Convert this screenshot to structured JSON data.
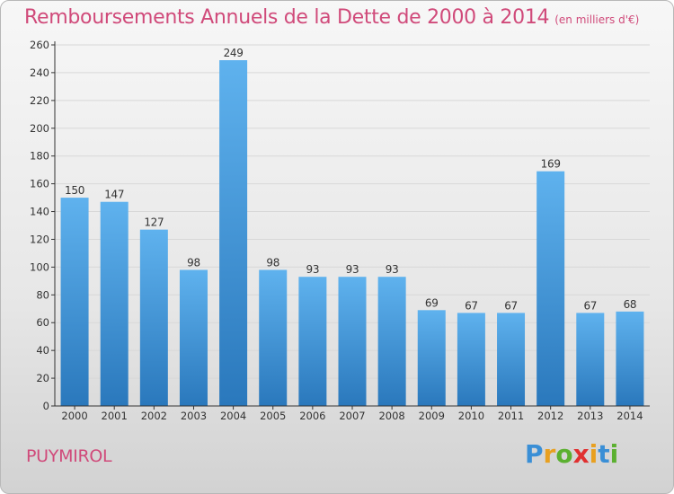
{
  "header": {
    "title": "Remboursements Annuels de la Dette de 2000 à 2014",
    "subtitle": "(en milliers d'€)"
  },
  "footer": {
    "commune": "PUYMIROL",
    "logo_letters": [
      {
        "char": "P",
        "color": "#3a8fd6"
      },
      {
        "char": "r",
        "color": "#e8a020"
      },
      {
        "char": "o",
        "color": "#5bb030"
      },
      {
        "char": "x",
        "color": "#e03030"
      },
      {
        "char": "i",
        "color": "#e8a020"
      },
      {
        "char": "t",
        "color": "#3a8fd6"
      },
      {
        "char": "i",
        "color": "#5bb030"
      }
    ]
  },
  "colors": {
    "bar_light": "#5fb2ee",
    "bar_dark": "#2a78bc",
    "title": "#d04a7a",
    "axis": "#333333",
    "grid": "#d8d8d8"
  },
  "chart_data": {
    "type": "bar",
    "title": "Remboursements Annuels de la Dette de 2000 à 2014",
    "subtitle": "(en milliers d'€)",
    "xlabel": "",
    "ylabel": "",
    "categories": [
      "2000",
      "2001",
      "2002",
      "2003",
      "2004",
      "2005",
      "2006",
      "2007",
      "2008",
      "2009",
      "2010",
      "2011",
      "2012",
      "2013",
      "2014"
    ],
    "values": [
      150,
      147,
      127,
      98,
      249,
      98,
      93,
      93,
      93,
      69,
      67,
      67,
      169,
      67,
      68
    ],
    "ylim": [
      0,
      260
    ],
    "yticks": [
      0,
      20,
      40,
      60,
      80,
      100,
      120,
      140,
      160,
      180,
      200,
      220,
      240,
      260
    ],
    "grid": true,
    "data_labels": true
  }
}
